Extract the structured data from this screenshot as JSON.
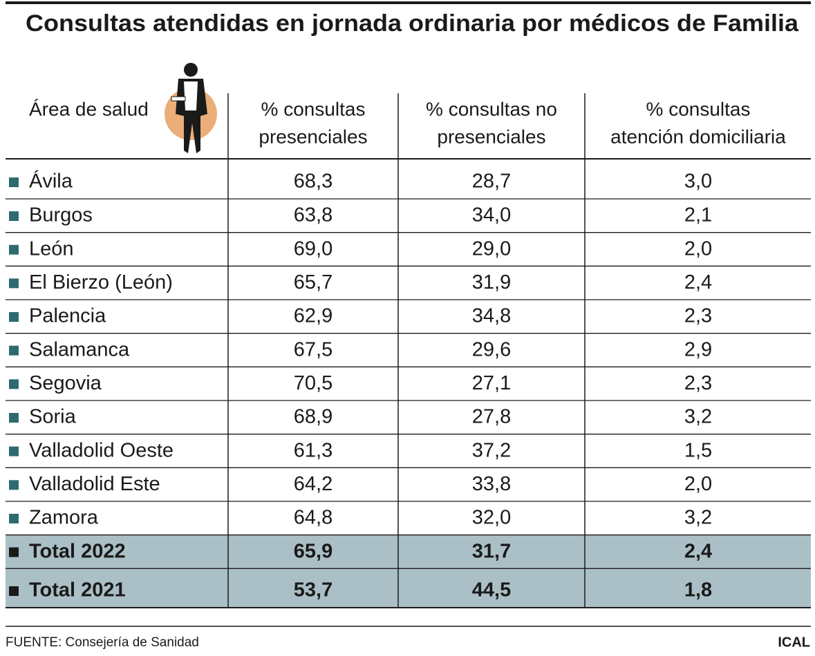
{
  "title": "Consultas atendidas en jornada ordinaria por médicos de Familia",
  "table": {
    "area_header": "Área de salud",
    "columns": [
      [
        "% consultas",
        "presenciales"
      ],
      [
        "% consultas no",
        "presenciales"
      ],
      [
        "% consultas",
        "atención domiciliaria"
      ]
    ],
    "rows": [
      [
        "Ávila",
        "68,3",
        "28,7",
        "3,0"
      ],
      [
        "Burgos",
        "63,8",
        "34,0",
        "2,1"
      ],
      [
        "León",
        "69,0",
        "29,0",
        "2,0"
      ],
      [
        "El Bierzo (León)",
        "65,7",
        "31,9",
        "2,4"
      ],
      [
        "Palencia",
        "62,9",
        "34,8",
        "2,3"
      ],
      [
        "Salamanca",
        "67,5",
        "29,6",
        "2,9"
      ],
      [
        "Segovia",
        "70,5",
        "27,1",
        "2,3"
      ],
      [
        "Soria",
        "68,9",
        "27,8",
        "3,2"
      ],
      [
        "Valladolid Oeste",
        "61,3",
        "37,2",
        "1,5"
      ],
      [
        "Valladolid Este",
        "64,2",
        "33,8",
        "2,0"
      ],
      [
        "Zamora",
        "64,8",
        "32,0",
        "3,2"
      ]
    ],
    "totals": [
      [
        "Total 2022",
        "65,9",
        "31,7",
        "2,4"
      ],
      [
        "Total 2021",
        "53,7",
        "44,5",
        "1,8"
      ]
    ]
  },
  "footer": {
    "source": "FUENTE: Consejería de Sanidad",
    "brand": "ICAL"
  }
}
